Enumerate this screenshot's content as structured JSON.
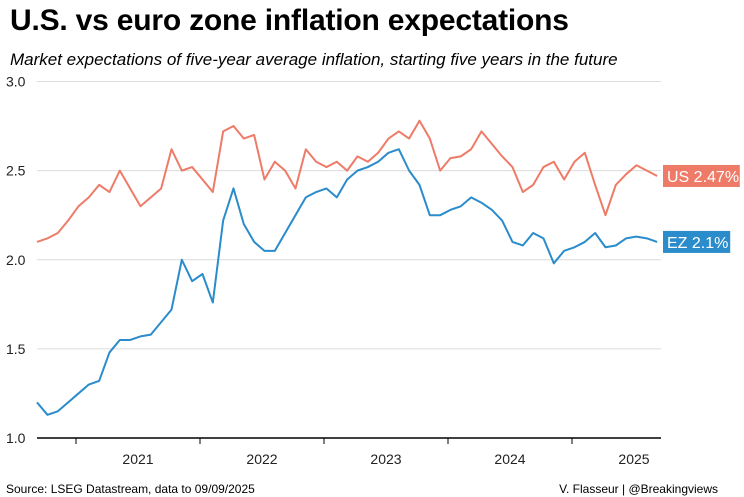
{
  "title": "U.S. vs euro zone inflation expectations",
  "subtitle": "Market expectations of five-year average inflation, starting five years in the future",
  "source": "Source: LSEG Datastream, data to 09/09/2025",
  "credit": "V. Flasseur | @Breakingviews",
  "chart_data": {
    "type": "line",
    "ylim": [
      1.0,
      3.0
    ],
    "yticks": [
      "1.0",
      "1.5",
      "2.0",
      "2.5",
      "3.0"
    ],
    "xticks": [
      "2021",
      "2022",
      "2023",
      "2024",
      "2025"
    ],
    "grid": true,
    "x": [
      "2020-09",
      "2020-10",
      "2020-11",
      "2020-12",
      "2021-01",
      "2021-02",
      "2021-03",
      "2021-04",
      "2021-05",
      "2021-06",
      "2021-07",
      "2021-08",
      "2021-09",
      "2021-10",
      "2021-11",
      "2021-12",
      "2022-01",
      "2022-02",
      "2022-03",
      "2022-04",
      "2022-05",
      "2022-06",
      "2022-07",
      "2022-08",
      "2022-09",
      "2022-10",
      "2022-11",
      "2022-12",
      "2023-01",
      "2023-02",
      "2023-03",
      "2023-04",
      "2023-05",
      "2023-06",
      "2023-07",
      "2023-08",
      "2023-09",
      "2023-10",
      "2023-11",
      "2023-12",
      "2024-01",
      "2024-02",
      "2024-03",
      "2024-04",
      "2024-05",
      "2024-06",
      "2024-07",
      "2024-08",
      "2024-09",
      "2024-10",
      "2024-11",
      "2024-12",
      "2025-01",
      "2025-02",
      "2025-03",
      "2025-04",
      "2025-05",
      "2025-06",
      "2025-07",
      "2025-08",
      "2025-09"
    ],
    "series": [
      {
        "name": "US",
        "end_label": "US 2.47%",
        "color": "#EE7B68",
        "values": [
          2.1,
          2.12,
          2.15,
          2.22,
          2.3,
          2.35,
          2.42,
          2.38,
          2.5,
          2.4,
          2.3,
          2.35,
          2.4,
          2.62,
          2.5,
          2.52,
          2.45,
          2.38,
          2.72,
          2.75,
          2.68,
          2.7,
          2.45,
          2.55,
          2.5,
          2.4,
          2.62,
          2.55,
          2.52,
          2.55,
          2.5,
          2.58,
          2.55,
          2.6,
          2.68,
          2.72,
          2.68,
          2.78,
          2.68,
          2.5,
          2.57,
          2.58,
          2.62,
          2.72,
          2.65,
          2.58,
          2.52,
          2.38,
          2.42,
          2.52,
          2.55,
          2.45,
          2.55,
          2.6,
          2.42,
          2.25,
          2.42,
          2.48,
          2.53,
          2.5,
          2.47
        ]
      },
      {
        "name": "EZ",
        "end_label": "EZ 2.1%",
        "color": "#2A8CCB",
        "values": [
          1.2,
          1.13,
          1.15,
          1.2,
          1.25,
          1.3,
          1.32,
          1.48,
          1.55,
          1.55,
          1.57,
          1.58,
          1.65,
          1.72,
          2.0,
          1.88,
          1.92,
          1.76,
          2.22,
          2.4,
          2.2,
          2.1,
          2.05,
          2.05,
          2.15,
          2.25,
          2.35,
          2.38,
          2.4,
          2.35,
          2.45,
          2.5,
          2.52,
          2.55,
          2.6,
          2.62,
          2.5,
          2.42,
          2.25,
          2.25,
          2.28,
          2.3,
          2.35,
          2.32,
          2.28,
          2.22,
          2.1,
          2.08,
          2.15,
          2.12,
          1.98,
          2.05,
          2.07,
          2.1,
          2.15,
          2.07,
          2.08,
          2.12,
          2.13,
          2.12,
          2.1
        ]
      }
    ]
  }
}
